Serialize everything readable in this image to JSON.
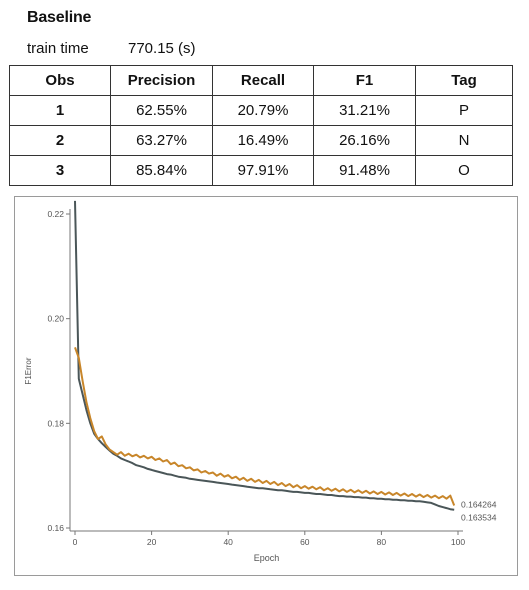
{
  "header": {
    "title": "Baseline",
    "train_time_label": "train time",
    "train_time_value": "770.15 (s)"
  },
  "table": {
    "columns": [
      "Obs",
      "Precision",
      "Recall",
      "F1",
      "Tag"
    ],
    "rows": [
      [
        "1",
        "62.55%",
        "20.79%",
        "31.21%",
        "P"
      ],
      [
        "2",
        "63.27%",
        "16.49%",
        "26.16%",
        "N"
      ],
      [
        "3",
        "85.84%",
        "97.91%",
        "91.48%",
        "O"
      ]
    ]
  },
  "chart_data": {
    "type": "line",
    "title": "",
    "xlabel": "Epoch",
    "ylabel": "F1Error",
    "xlim": [
      0,
      100
    ],
    "ylim": [
      0.16,
      0.22
    ],
    "xticks": [
      0,
      20,
      40,
      60,
      80,
      100
    ],
    "yticks": [
      0.16,
      0.18,
      0.2,
      0.22
    ],
    "ytick_labels": [
      "0.16",
      "0.18",
      "0.20",
      "0.22"
    ],
    "grid": false,
    "colors": {
      "series_dark": "#4a5658",
      "series_orange": "#c8862a"
    },
    "end_labels": [
      "0.164264",
      "0.163534"
    ],
    "x": [
      0,
      1,
      2,
      3,
      4,
      5,
      6,
      7,
      8,
      9,
      10,
      11,
      12,
      13,
      14,
      15,
      16,
      17,
      18,
      19,
      20,
      21,
      22,
      23,
      24,
      25,
      26,
      27,
      28,
      29,
      30,
      31,
      32,
      33,
      34,
      35,
      36,
      37,
      38,
      39,
      40,
      41,
      42,
      43,
      44,
      45,
      46,
      47,
      48,
      49,
      50,
      51,
      52,
      53,
      54,
      55,
      56,
      57,
      58,
      59,
      60,
      61,
      62,
      63,
      64,
      65,
      66,
      67,
      68,
      69,
      70,
      71,
      72,
      73,
      74,
      75,
      76,
      77,
      78,
      79,
      80,
      81,
      82,
      83,
      84,
      85,
      86,
      87,
      88,
      89,
      90,
      91,
      92,
      93,
      94,
      95,
      96,
      97,
      98,
      99
    ],
    "series": [
      {
        "color": "#4a5658",
        "values": [
          0.2225,
          0.1885,
          0.1855,
          0.1825,
          0.18,
          0.178,
          0.177,
          0.1762,
          0.1755,
          0.1748,
          0.1742,
          0.1738,
          0.1733,
          0.173,
          0.1727,
          0.1724,
          0.172,
          0.1718,
          0.1716,
          0.1713,
          0.1711,
          0.1709,
          0.1707,
          0.1705,
          0.1703,
          0.1702,
          0.17,
          0.1698,
          0.1697,
          0.1696,
          0.1694,
          0.1693,
          0.1692,
          0.1691,
          0.169,
          0.1689,
          0.1688,
          0.1687,
          0.1686,
          0.1685,
          0.1684,
          0.1683,
          0.1682,
          0.1681,
          0.168,
          0.1679,
          0.1678,
          0.1677,
          0.1676,
          0.1676,
          0.1675,
          0.1674,
          0.1673,
          0.1672,
          0.1672,
          0.1671,
          0.167,
          0.1669,
          0.1669,
          0.1668,
          0.1667,
          0.1667,
          0.1666,
          0.1665,
          0.1665,
          0.1664,
          0.1663,
          0.1663,
          0.1662,
          0.1661,
          0.1661,
          0.166,
          0.166,
          0.1659,
          0.1659,
          0.1658,
          0.1658,
          0.1657,
          0.1657,
          0.1656,
          0.1656,
          0.1655,
          0.1655,
          0.1654,
          0.1654,
          0.1653,
          0.1653,
          0.1652,
          0.1652,
          0.1651,
          0.1651,
          0.165,
          0.1649,
          0.1648,
          0.1645,
          0.1642,
          0.164,
          0.1638,
          0.1636,
          0.1635
        ]
      },
      {
        "color": "#c8862a",
        "values": [
          0.1945,
          0.1925,
          0.188,
          0.184,
          0.181,
          0.1785,
          0.177,
          0.1775,
          0.176,
          0.175,
          0.1745,
          0.174,
          0.1745,
          0.1738,
          0.1742,
          0.1737,
          0.174,
          0.1735,
          0.1738,
          0.1733,
          0.1736,
          0.173,
          0.1733,
          0.1727,
          0.173,
          0.1722,
          0.1725,
          0.1718,
          0.172,
          0.1714,
          0.1716,
          0.171,
          0.1712,
          0.1706,
          0.1709,
          0.1704,
          0.1706,
          0.17,
          0.1704,
          0.1698,
          0.1701,
          0.1695,
          0.1698,
          0.1692,
          0.1696,
          0.169,
          0.1694,
          0.1688,
          0.1692,
          0.1686,
          0.169,
          0.1684,
          0.1688,
          0.1682,
          0.1686,
          0.168,
          0.1684,
          0.1678,
          0.1682,
          0.1676,
          0.168,
          0.1675,
          0.1679,
          0.1674,
          0.1678,
          0.1672,
          0.1676,
          0.1671,
          0.1675,
          0.167,
          0.1674,
          0.1669,
          0.1673,
          0.1668,
          0.1672,
          0.1667,
          0.1671,
          0.1666,
          0.167,
          0.1665,
          0.1669,
          0.1664,
          0.1668,
          0.1663,
          0.1667,
          0.1662,
          0.1666,
          0.1661,
          0.1665,
          0.166,
          0.1664,
          0.1659,
          0.1663,
          0.1658,
          0.1662,
          0.1657,
          0.1661,
          0.1656,
          0.1662,
          0.1643
        ]
      }
    ]
  }
}
